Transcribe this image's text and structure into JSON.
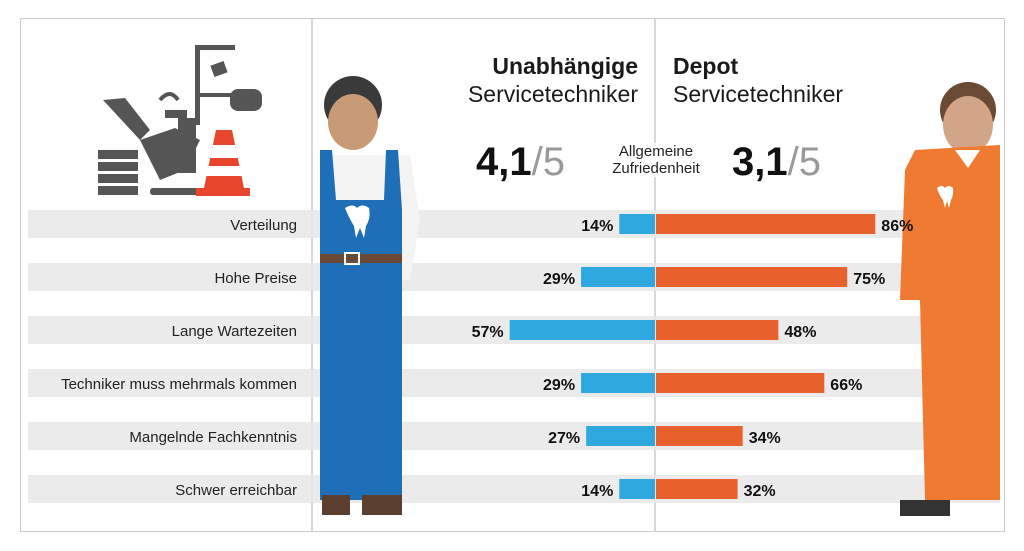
{
  "headers": {
    "left": {
      "bold": "Unabhängige",
      "normal": "Servicetechniker"
    },
    "right": {
      "bold": "Depot",
      "normal": "Servicetechniker"
    }
  },
  "satisfaction": {
    "label_line1": "Allgemeine",
    "label_line2": "Zufriedenheit",
    "left_score": "4,1",
    "left_denominator": "/5",
    "right_score": "3,1",
    "right_denominator": "/5"
  },
  "colors": {
    "independent": "#2fa8e0",
    "depot": "#e8612c",
    "band": "#e8e8e8"
  },
  "icons": [
    "dental-chair-icon",
    "traffic-cone-icon",
    "technician-blue-overalls-icon",
    "technician-orange-suit-icon",
    "tooth-icon"
  ],
  "chart_data": {
    "type": "bar",
    "orientation": "horizontal-diverging",
    "categories": [
      "Verteilung",
      "Hohe Preise",
      "Lange Wartezeiten",
      "Techniker muss mehrmals kommen",
      "Mangelnde Fachkenntnis",
      "Schwer erreichbar"
    ],
    "series": [
      {
        "name": "Unabhängige Servicetechniker",
        "values": [
          14,
          29,
          57,
          29,
          27,
          14
        ],
        "labels": [
          "14%",
          "29%",
          "57%",
          "29%",
          "27%",
          "14%"
        ],
        "color": "#2fa8e0"
      },
      {
        "name": "Depot Servicetechniker",
        "values": [
          86,
          75,
          48,
          66,
          34,
          32
        ],
        "labels": [
          "86%",
          "75%",
          "48%",
          "66%",
          "34%",
          "32%"
        ],
        "color": "#e8612c"
      }
    ],
    "unit": "%",
    "xlim": [
      0,
      100
    ],
    "grid": false
  }
}
